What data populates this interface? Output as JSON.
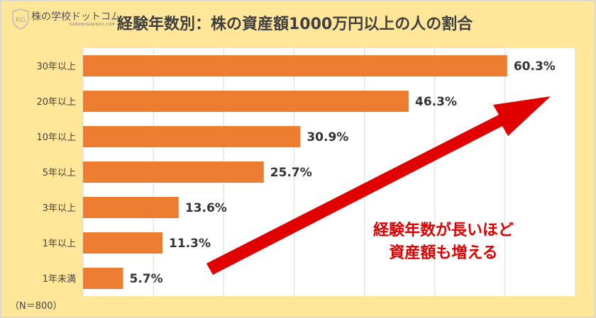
{
  "logo": {
    "text": "株の学校ドットコム",
    "sub": "KABUNOGAKKOU.COM"
  },
  "chart_data": {
    "type": "bar",
    "orientation": "horizontal",
    "title": "経験年数別：株の資産額1000万円以上の人の割合",
    "categories": [
      "30年以上",
      "20年以上",
      "10年以上",
      "5年以上",
      "3年以上",
      "1年以上",
      "1年未満"
    ],
    "values": [
      60.3,
      46.3,
      30.9,
      25.7,
      13.6,
      11.3,
      5.7
    ],
    "data_labels": [
      "60.3%",
      "46.3%",
      "30.9%",
      "25.7%",
      "13.6%",
      "11.3%",
      "5.7%"
    ],
    "xlim": [
      0,
      70
    ],
    "grid": true,
    "bar_color": "#ED7D31",
    "note": "（N＝800）",
    "annotation": [
      "経験年数が長いほど",
      "資産額も増える"
    ],
    "annotation_color": "#E00000"
  }
}
